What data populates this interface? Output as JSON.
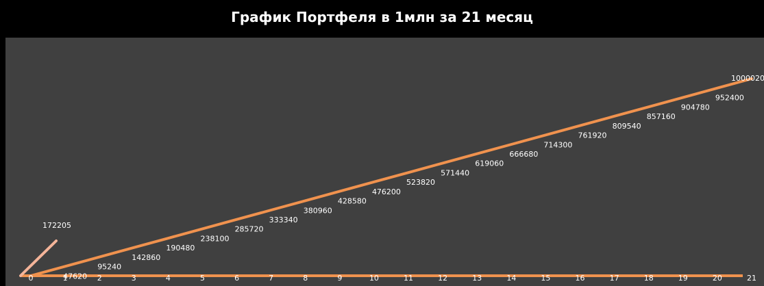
{
  "chart_data": {
    "type": "line",
    "title": "График Портфеля в 1млн за 21 месяц",
    "x": [
      0,
      1,
      2,
      3,
      4,
      5,
      6,
      7,
      8,
      9,
      10,
      11,
      12,
      13,
      14,
      15,
      16,
      17,
      18,
      19,
      20,
      21
    ],
    "xlim": [
      0,
      21
    ],
    "series": [
      {
        "values": [
          0,
          47620,
          95240,
          142860,
          190480,
          238100,
          285720,
          333340,
          380960,
          428580,
          476200,
          523820,
          571440,
          619060,
          666680,
          714300,
          761920,
          809540,
          857160,
          904780,
          952400,
          1000020
        ],
        "labels": [
          "0",
          "47620",
          "95240",
          "142860",
          "190480",
          "238100",
          "285720",
          "333340",
          "380960",
          "428580",
          "476200",
          "523820",
          "571440",
          "619060",
          "666680",
          "714300",
          "761920",
          "809540",
          "857160",
          "904780",
          "952400",
          "1000020"
        ]
      },
      {
        "x": [
          0,
          1
        ],
        "values": [
          0,
          172205
        ],
        "labels": [
          "",
          "172205"
        ]
      }
    ],
    "grid": false,
    "legend": "none",
    "colors": {
      "background": "#000000",
      "plot_area": "#404040",
      "series_main": "#F0924E",
      "series_secondary": "#F4B499",
      "baseline": "#F0924E",
      "text": "#ffffff"
    }
  }
}
